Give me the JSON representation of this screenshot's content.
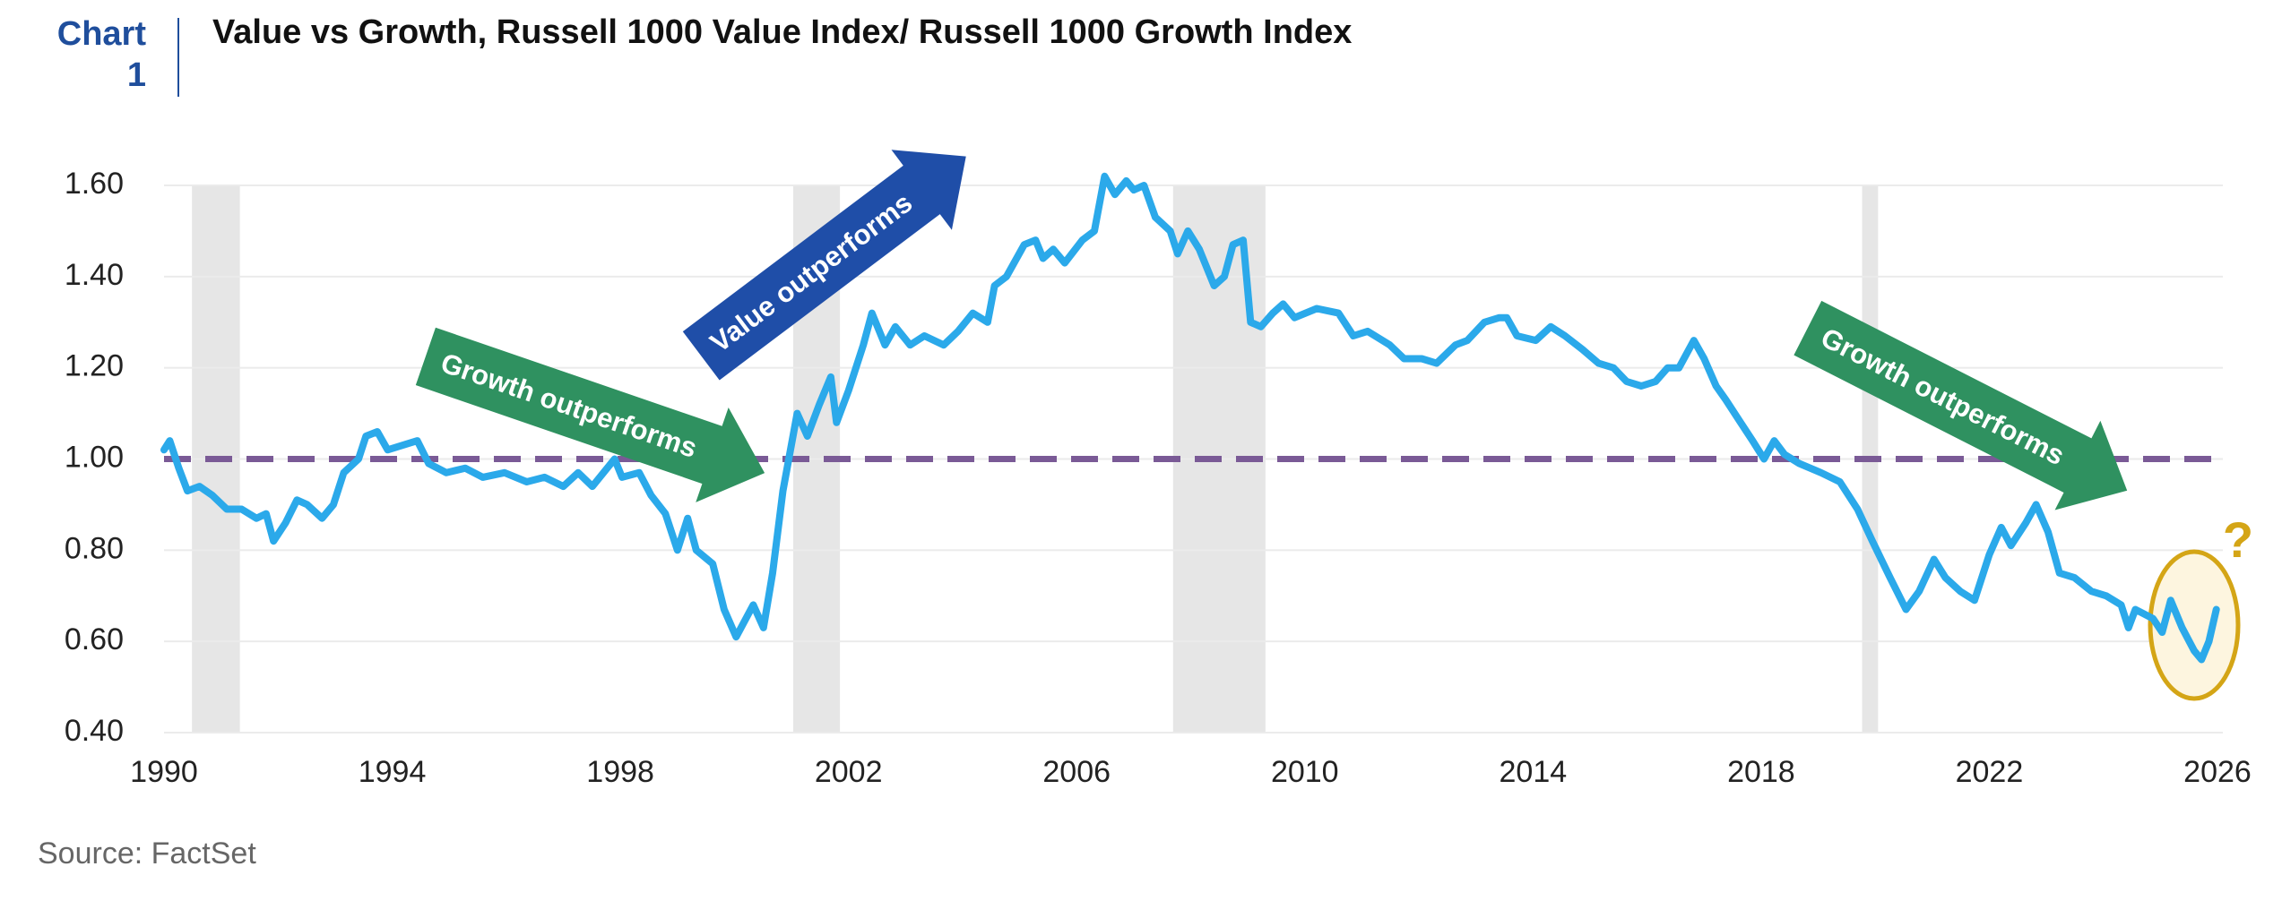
{
  "label": [
    "Chart",
    "1"
  ],
  "chart_data": {
    "type": "line",
    "title": "Value vs Growth, Russell 1000 Value Index/ Russell 1000 Growth Index",
    "source": "Source: FactSet",
    "color": "#2ba9ea",
    "xlim": [
      1990,
      2026
    ],
    "xticks": [
      1990,
      1994,
      1998,
      2002,
      2006,
      2010,
      2014,
      2018,
      2022,
      2026
    ],
    "ylim": [
      0.4,
      1.6
    ],
    "yticks": [
      {
        "value": 0.4,
        "label": "0.40"
      },
      {
        "value": 0.6,
        "label": "0.60"
      },
      {
        "value": 0.8,
        "label": "0.80"
      },
      {
        "value": 1.0,
        "label": "1.00"
      },
      {
        "value": 1.2,
        "label": "1.20"
      },
      {
        "value": 1.4,
        "label": "1.40"
      },
      {
        "value": 1.6,
        "label": "1.60"
      }
    ],
    "grid": true,
    "ref_line": 1.0,
    "ref_color": "#7a5a96",
    "shaded_ranges": [
      [
        1990.49,
        1991.33
      ],
      [
        2001.03,
        2001.85
      ],
      [
        2007.69,
        2009.31
      ],
      [
        2019.77,
        2020.05
      ]
    ],
    "annotations": [
      "Growth outperforms",
      "Value outperforms",
      "Growth outperforms",
      "?"
    ],
    "x": [
      1990.0,
      1990.1,
      1990.26,
      1990.41,
      1990.62,
      1990.85,
      1991.1,
      1991.36,
      1991.62,
      1991.79,
      1991.92,
      1992.13,
      1992.33,
      1992.51,
      1992.77,
      1992.97,
      1993.15,
      1993.41,
      1993.54,
      1993.74,
      1993.92,
      1994.18,
      1994.44,
      1994.64,
      1994.95,
      1995.28,
      1995.59,
      1995.97,
      1996.36,
      1996.67,
      1997.0,
      1997.26,
      1997.51,
      1997.9,
      1998.03,
      1998.33,
      1998.54,
      1998.79,
      1999.0,
      1999.18,
      1999.33,
      1999.62,
      1999.82,
      2000.03,
      2000.33,
      2000.51,
      2000.67,
      2000.85,
      2001.1,
      2001.28,
      2001.49,
      2001.69,
      2001.79,
      2002.0,
      2002.26,
      2002.41,
      2002.64,
      2002.82,
      2003.08,
      2003.33,
      2003.67,
      2003.92,
      2004.18,
      2004.44,
      2004.56,
      2004.77,
      2005.08,
      2005.28,
      2005.41,
      2005.59,
      2005.79,
      2006.1,
      2006.31,
      2006.49,
      2006.67,
      2006.87,
      2007.0,
      2007.18,
      2007.38,
      2007.64,
      2007.77,
      2007.95,
      2008.15,
      2008.41,
      2008.59,
      2008.74,
      2008.92,
      2009.05,
      2009.23,
      2009.44,
      2009.62,
      2009.82,
      2010.21,
      2010.59,
      2010.85,
      2011.1,
      2011.49,
      2011.74,
      2012.05,
      2012.31,
      2012.64,
      2012.85,
      2013.15,
      2013.41,
      2013.54,
      2013.72,
      2014.05,
      2014.31,
      2014.56,
      2014.87,
      2015.15,
      2015.41,
      2015.64,
      2015.9,
      2016.15,
      2016.36,
      2016.56,
      2016.82,
      2017.0,
      2017.21,
      2017.38,
      2017.64,
      2017.85,
      2018.05,
      2018.23,
      2018.41,
      2018.67,
      2019.05,
      2019.38,
      2019.69,
      2019.95,
      2020.26,
      2020.54,
      2020.77,
      2021.03,
      2021.23,
      2021.49,
      2021.74,
      2022.0,
      2022.21,
      2022.38,
      2022.64,
      2022.82,
      2023.03,
      2023.23,
      2023.49,
      2023.79,
      2024.05,
      2024.31,
      2024.44,
      2024.56,
      2024.87,
      2025.03,
      2025.18,
      2025.38,
      2025.59,
      2025.72,
      2025.85,
      2025.98
    ],
    "values": [
      1.02,
      1.04,
      0.98,
      0.93,
      0.94,
      0.92,
      0.89,
      0.89,
      0.87,
      0.88,
      0.82,
      0.86,
      0.91,
      0.9,
      0.87,
      0.9,
      0.97,
      1.0,
      1.05,
      1.06,
      1.02,
      1.03,
      1.04,
      0.99,
      0.97,
      0.98,
      0.96,
      0.97,
      0.95,
      0.96,
      0.94,
      0.97,
      0.94,
      1.0,
      0.96,
      0.97,
      0.92,
      0.88,
      0.8,
      0.87,
      0.8,
      0.77,
      0.67,
      0.61,
      0.68,
      0.63,
      0.75,
      0.93,
      1.1,
      1.05,
      1.12,
      1.18,
      1.08,
      1.15,
      1.25,
      1.32,
      1.25,
      1.29,
      1.25,
      1.27,
      1.25,
      1.28,
      1.32,
      1.3,
      1.38,
      1.4,
      1.47,
      1.48,
      1.44,
      1.46,
      1.43,
      1.48,
      1.5,
      1.62,
      1.58,
      1.61,
      1.59,
      1.6,
      1.53,
      1.5,
      1.45,
      1.5,
      1.46,
      1.38,
      1.4,
      1.47,
      1.48,
      1.3,
      1.29,
      1.32,
      1.34,
      1.31,
      1.33,
      1.32,
      1.27,
      1.28,
      1.25,
      1.22,
      1.22,
      1.21,
      1.25,
      1.26,
      1.3,
      1.31,
      1.31,
      1.27,
      1.26,
      1.29,
      1.27,
      1.24,
      1.21,
      1.2,
      1.17,
      1.16,
      1.17,
      1.2,
      1.2,
      1.26,
      1.22,
      1.16,
      1.13,
      1.08,
      1.04,
      1.0,
      1.04,
      1.01,
      0.99,
      0.97,
      0.95,
      0.89,
      0.82,
      0.74,
      0.67,
      0.71,
      0.78,
      0.74,
      0.71,
      0.69,
      0.79,
      0.85,
      0.81,
      0.86,
      0.9,
      0.84,
      0.75,
      0.74,
      0.71,
      0.7,
      0.68,
      0.63,
      0.67,
      0.65,
      0.62,
      0.69,
      0.63,
      0.58,
      0.56,
      0.6,
      0.67
    ]
  }
}
